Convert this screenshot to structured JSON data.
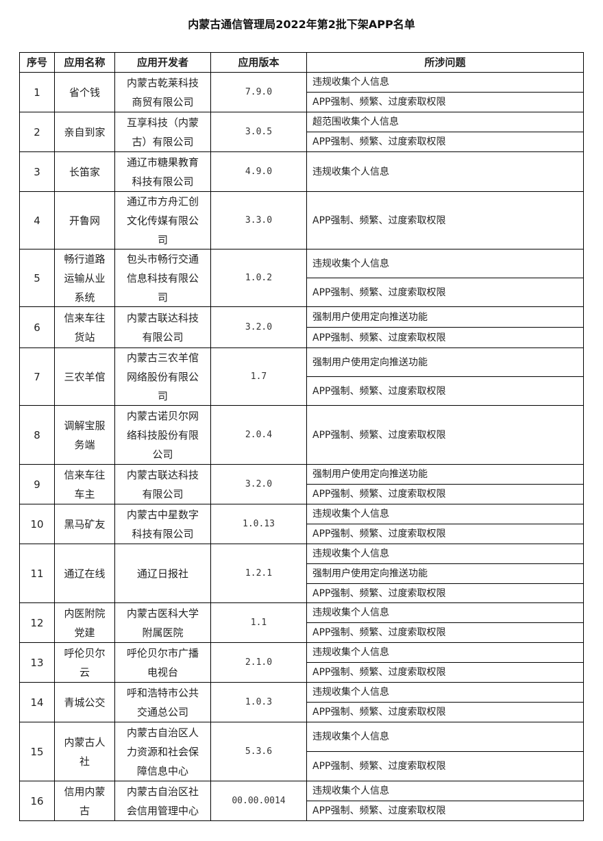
{
  "title": "内蒙古通信管理局2022年第2批下架APP名单",
  "headers": [
    "序号",
    "应用名称",
    "应用开发者",
    "应用版本",
    "所涉问题"
  ],
  "rows": [
    {
      "no": "1",
      "name": "省个钱",
      "developer": "内蒙古乾莱科技商贸有限公司",
      "version": "7.9.0",
      "issues": [
        "违规收集个人信息",
        "APP强制、频繁、过度索取权限"
      ]
    },
    {
      "no": "2",
      "name": "亲自到家",
      "developer": "互享科技（内蒙古）有限公司",
      "version": "3.0.5",
      "issues": [
        "超范围收集个人信息",
        "APP强制、频繁、过度索取权限"
      ]
    },
    {
      "no": "3",
      "name": "长笛家",
      "developer": "通辽市糖果教育科技有限公司",
      "version": "4.9.0",
      "issues": [
        "违规收集个人信息"
      ]
    },
    {
      "no": "4",
      "name": "开鲁网",
      "developer": "通辽市方舟汇创文化传媒有限公司",
      "version": "3.3.0",
      "issues": [
        "APP强制、频繁、过度索取权限"
      ]
    },
    {
      "no": "5",
      "name": "畅行道路运输从业系统",
      "developer": "包头市畅行交通信息科技有限公司",
      "version": "1.0.2",
      "issues": [
        "违规收集个人信息",
        "APP强制、频繁、过度索取权限"
      ]
    },
    {
      "no": "6",
      "name": "信来车往货站",
      "developer": "内蒙古联达科技有限公司",
      "version": "3.2.0",
      "issues": [
        "强制用户使用定向推送功能",
        "APP强制、频繁、过度索取权限"
      ]
    },
    {
      "no": "7",
      "name": "三农羊倌",
      "developer": "内蒙古三农羊倌网络股份有限公司",
      "version": "1.7",
      "issues": [
        "强制用户使用定向推送功能",
        "APP强制、频繁、过度索取权限"
      ]
    },
    {
      "no": "8",
      "name": "调解宝服务端",
      "developer": "内蒙古诺贝尔网络科技股份有限公司",
      "version": "2.0.4",
      "issues": [
        "APP强制、频繁、过度索取权限"
      ]
    },
    {
      "no": "9",
      "name": "信来车往车主",
      "developer": "内蒙古联达科技有限公司",
      "version": "3.2.0",
      "issues": [
        "强制用户使用定向推送功能",
        "APP强制、频繁、过度索取权限"
      ]
    },
    {
      "no": "10",
      "name": "黑马矿友",
      "developer": "内蒙古中星数字科技有限公司",
      "version": "1.0.13",
      "issues": [
        "违规收集个人信息",
        "APP强制、频繁、过度索取权限"
      ]
    },
    {
      "no": "11",
      "name": "通辽在线",
      "developer": "通辽日报社",
      "version": "1.2.1",
      "issues": [
        "违规收集个人信息",
        "强制用户使用定向推送功能",
        "APP强制、频繁、过度索取权限"
      ]
    },
    {
      "no": "12",
      "name": "内医附院党建",
      "developer": "内蒙古医科大学附属医院",
      "version": "1.1",
      "issues": [
        "违规收集个人信息",
        "APP强制、频繁、过度索取权限"
      ]
    },
    {
      "no": "13",
      "name": "呼伦贝尔云",
      "developer": "呼伦贝尔市广播电视台",
      "version": "2.1.0",
      "issues": [
        "违规收集个人信息",
        "APP强制、频繁、过度索取权限"
      ]
    },
    {
      "no": "14",
      "name": "青城公交",
      "developer": "呼和浩特市公共交通总公司",
      "version": "1.0.3",
      "issues": [
        "违规收集个人信息",
        "APP强制、频繁、过度索取权限"
      ]
    },
    {
      "no": "15",
      "name": "内蒙古人社",
      "developer": "内蒙古自治区人力资源和社会保障信息中心",
      "version": "5.3.6",
      "issues": [
        "违规收集个人信息",
        "APP强制、频繁、过度索取权限"
      ]
    },
    {
      "no": "16",
      "name": "信用内蒙古",
      "developer": "内蒙古自治区社会信用管理中心",
      "version": "00.00.0014",
      "issues": [
        "违规收集个人信息",
        "APP强制、频繁、过度索取权限"
      ]
    }
  ]
}
